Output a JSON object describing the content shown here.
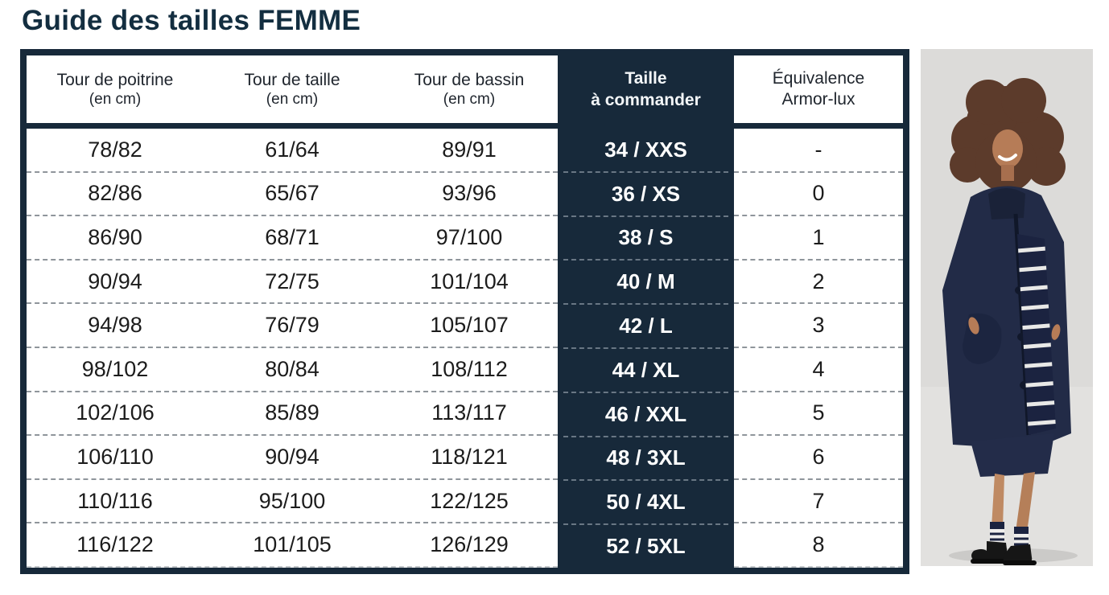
{
  "page": {
    "title": "Guide des tailles FEMME"
  },
  "colors": {
    "navy": "#17293A",
    "title_navy": "#132E40",
    "dash_gray": "#8F959B",
    "photo_background": "#DCDBD9"
  },
  "table": {
    "column_headers": [
      {
        "id": "poitrine",
        "line1": "Tour de poitrine",
        "line2": "(en cm)"
      },
      {
        "id": "taille",
        "line1": "Tour de taille",
        "line2": "(en cm)"
      },
      {
        "id": "bassin",
        "line1": "Tour de bassin",
        "line2": "(en cm)"
      },
      {
        "id": "commander",
        "line1": "Taille",
        "line2": "à commander"
      },
      {
        "id": "equivalence",
        "line1": "Équivalence",
        "line2": "Armor-lux"
      }
    ],
    "rows": [
      {
        "poitrine": "78/82",
        "taille": "61/64",
        "bassin": "89/91",
        "taille_commander": "34 / XXS",
        "equivalence": "-"
      },
      {
        "poitrine": "82/86",
        "taille": "65/67",
        "bassin": "93/96",
        "taille_commander": "36 / XS",
        "equivalence": "0"
      },
      {
        "poitrine": "86/90",
        "taille": "68/71",
        "bassin": "97/100",
        "taille_commander": "38 / S",
        "equivalence": "1"
      },
      {
        "poitrine": "90/94",
        "taille": "72/75",
        "bassin": "101/104",
        "taille_commander": "40 / M",
        "equivalence": "2"
      },
      {
        "poitrine": "94/98",
        "taille": "76/79",
        "bassin": "105/107",
        "taille_commander": "42 / L",
        "equivalence": "3"
      },
      {
        "poitrine": "98/102",
        "taille": "80/84",
        "bassin": "108/112",
        "taille_commander": "44 / XL",
        "equivalence": "4"
      },
      {
        "poitrine": "102/106",
        "taille": "85/89",
        "bassin": "113/117",
        "taille_commander": "46 / XXL",
        "equivalence": "5"
      },
      {
        "poitrine": "106/110",
        "taille": "90/94",
        "bassin": "118/121",
        "taille_commander": "48 / 3XL",
        "equivalence": "6"
      },
      {
        "poitrine": "110/116",
        "taille": "95/100",
        "bassin": "122/125",
        "taille_commander": "50 / 4XL",
        "equivalence": "7"
      },
      {
        "poitrine": "116/122",
        "taille": "101/105",
        "bassin": "126/129",
        "taille_commander": "52 / 5XL",
        "equivalence": "8"
      }
    ]
  }
}
